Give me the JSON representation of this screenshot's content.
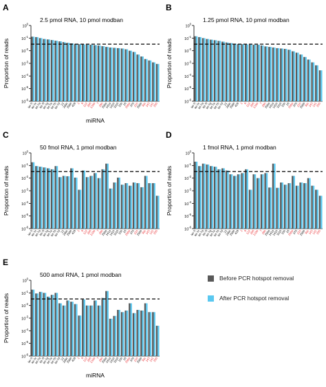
{
  "figure": {
    "colors": {
      "before": "#595959",
      "after": "#5ac8f0",
      "threshold": "#000000",
      "red_label": "#e8262a"
    },
    "legend": {
      "items": [
        {
          "label": "Before PCR hotspot removal",
          "color": "#595959"
        },
        {
          "label": "After PCR hotspot removal",
          "color": "#5ac8f0"
        }
      ]
    }
  },
  "chart_data": [
    {
      "panel": "A",
      "type": "bar",
      "title": "2.5 pmol RNA, 10 pmol modban",
      "xlabel": "miRNA",
      "ylabel": "Proportion of reads",
      "yscale": "log",
      "ylim": [
        1e-06,
        1
      ],
      "threshold": 0.033,
      "y_ticks": [
        0,
        -1,
        -2,
        -3,
        -4,
        -5,
        -6
      ],
      "categories": [
        "let-7i",
        "let-7c",
        "let-7a",
        "let-7f",
        "let-7g",
        "let-7e",
        "let-7b",
        "let-7d",
        "21",
        "200c",
        "200b",
        "429",
        "1",
        "9",
        "122",
        "206",
        "133a",
        "7",
        "29b",
        "205a",
        "141a",
        "141b",
        "3110",
        "15b",
        "16",
        "200a",
        "375",
        "21b",
        "205b",
        "30c",
        "143",
        "141",
        "205"
      ],
      "red": [
        12,
        13,
        14,
        15,
        16,
        17,
        18,
        25,
        27,
        29,
        30,
        31,
        32
      ],
      "series": [
        {
          "name": "Before PCR hotspot removal",
          "values": [
            0.13,
            0.12,
            0.1,
            0.085,
            0.078,
            0.07,
            0.062,
            0.055,
            0.048,
            0.042,
            0.038,
            0.035,
            0.033,
            0.032,
            0.031,
            0.03,
            0.028,
            0.026,
            0.023,
            0.02,
            0.018,
            0.017,
            0.016,
            0.015,
            0.013,
            0.01,
            0.008,
            0.005,
            0.0035,
            0.0022,
            0.0017,
            0.0012,
            0.0009
          ]
        },
        {
          "name": "After PCR hotspot removal",
          "values": [
            0.13,
            0.12,
            0.1,
            0.085,
            0.078,
            0.07,
            0.062,
            0.055,
            0.048,
            0.042,
            0.038,
            0.035,
            0.033,
            0.032,
            0.031,
            0.03,
            0.028,
            0.026,
            0.023,
            0.02,
            0.018,
            0.017,
            0.016,
            0.015,
            0.013,
            0.01,
            0.008,
            0.005,
            0.0035,
            0.0022,
            0.0017,
            0.0012,
            0.0009
          ]
        }
      ]
    },
    {
      "panel": "B",
      "type": "bar",
      "title": "1.25 pmol RNA, 10 pmol modban",
      "xlabel": "",
      "ylabel": "Proportion of reads",
      "yscale": "log",
      "ylim": [
        1e-06,
        1
      ],
      "threshold": 0.033,
      "y_ticks": [
        0,
        -1,
        -2,
        -3,
        -4,
        -5,
        -6
      ],
      "categories": [
        "let-7i",
        "let-7c",
        "let-7a",
        "let-7f",
        "let-7g",
        "let-7e",
        "let-7b",
        "let-7d",
        "21",
        "200c",
        "200b",
        "429",
        "1",
        "9",
        "122",
        "206",
        "133a",
        "7",
        "29b",
        "205a",
        "141a",
        "141b",
        "3110",
        "15b",
        "16",
        "200a",
        "375",
        "21b",
        "205b",
        "30c",
        "143",
        "141",
        "205"
      ],
      "red": [
        12,
        13,
        14,
        15,
        16,
        17,
        18,
        25,
        27,
        29,
        30,
        31,
        32
      ],
      "series": [
        {
          "name": "Before PCR hotspot removal",
          "values": [
            0.14,
            0.12,
            0.1,
            0.085,
            0.075,
            0.068,
            0.06,
            0.052,
            0.045,
            0.04,
            0.036,
            0.034,
            0.033,
            0.032,
            0.031,
            0.03,
            0.03,
            0.026,
            0.022,
            0.02,
            0.018,
            0.016,
            0.015,
            0.014,
            0.012,
            0.009,
            0.007,
            0.005,
            0.0032,
            0.002,
            0.0012,
            0.0007,
            0.00028
          ]
        },
        {
          "name": "After PCR hotspot removal",
          "values": [
            0.14,
            0.12,
            0.1,
            0.085,
            0.075,
            0.068,
            0.06,
            0.052,
            0.045,
            0.04,
            0.036,
            0.034,
            0.033,
            0.032,
            0.031,
            0.03,
            0.03,
            0.026,
            0.022,
            0.02,
            0.018,
            0.016,
            0.015,
            0.014,
            0.012,
            0.009,
            0.007,
            0.005,
            0.0032,
            0.002,
            0.0012,
            0.0007,
            0.00028
          ]
        }
      ]
    },
    {
      "panel": "C",
      "type": "bar",
      "title": "50 fmol RNA, 1 pmol modban",
      "xlabel": "",
      "ylabel": "Proportion of reads",
      "yscale": "log",
      "ylim": [
        1e-06,
        1
      ],
      "threshold": 0.033,
      "y_ticks": [
        0,
        -1,
        -2,
        -3,
        -4,
        -5,
        -6
      ],
      "categories": [
        "let-7i",
        "let-7c",
        "let-7a",
        "let-7f",
        "let-7g",
        "let-7e",
        "let-7b",
        "let-7d",
        "21",
        "200c",
        "200b",
        "429",
        "1",
        "9",
        "122",
        "206",
        "133a",
        "7",
        "29b",
        "205a",
        "141a",
        "141b",
        "3110",
        "15b",
        "16",
        "200a",
        "375",
        "21b",
        "205b",
        "30c",
        "143",
        "141",
        "205"
      ],
      "red": [
        12,
        13,
        14,
        15,
        16,
        17,
        18,
        25,
        27,
        29,
        30,
        31,
        32
      ],
      "series": [
        {
          "name": "Before PCR hotspot removal",
          "values": [
            0.18,
            0.09,
            0.08,
            0.07,
            0.06,
            0.05,
            0.09,
            0.012,
            0.015,
            0.014,
            0.06,
            0.011,
            0.0012,
            0.04,
            0.012,
            0.015,
            0.025,
            0.01,
            0.05,
            0.14,
            0.0015,
            0.0045,
            0.011,
            0.003,
            0.004,
            0.0025,
            0.0045,
            0.004,
            0.0019,
            0.015,
            0.004,
            0.004,
            0.0004
          ]
        },
        {
          "name": "After PCR hotspot removal",
          "values": [
            0.18,
            0.09,
            0.08,
            0.07,
            0.06,
            0.05,
            0.09,
            0.012,
            0.015,
            0.014,
            0.06,
            0.011,
            0.0012,
            0.04,
            0.012,
            0.015,
            0.025,
            0.01,
            0.05,
            0.14,
            0.0015,
            0.0045,
            0.011,
            0.003,
            0.004,
            0.0025,
            0.0045,
            0.004,
            0.0019,
            0.015,
            0.004,
            0.004,
            0.0004
          ]
        }
      ]
    },
    {
      "panel": "D",
      "type": "bar",
      "title": "1 fmol RNA, 1 pmol modban",
      "xlabel": "",
      "ylabel": "Proportion of reads",
      "yscale": "log",
      "ylim": [
        1e-06,
        1
      ],
      "threshold": 0.033,
      "y_ticks": [
        0,
        -1,
        -2,
        -3,
        -4,
        -5,
        -6
      ],
      "categories": [
        "let-7i",
        "let-7c",
        "let-7a",
        "let-7f",
        "let-7g",
        "let-7e",
        "let-7b",
        "let-7d",
        "21",
        "200c",
        "200b",
        "429",
        "1",
        "9",
        "122",
        "206",
        "133a",
        "7",
        "29b",
        "205a",
        "141a",
        "141b",
        "3110",
        "15b",
        "16",
        "200a",
        "375",
        "21b",
        "205b",
        "30c",
        "143",
        "141",
        "205"
      ],
      "red": [
        12,
        13,
        14,
        15,
        16,
        17,
        18,
        25,
        27,
        29,
        30,
        31,
        32
      ],
      "series": [
        {
          "name": "Before PCR hotspot removal",
          "values": [
            0.2,
            0.09,
            0.14,
            0.12,
            0.09,
            0.08,
            0.05,
            0.06,
            0.04,
            0.02,
            0.015,
            0.02,
            0.025,
            0.05,
            0.0012,
            0.02,
            0.01,
            0.02,
            0.025,
            0.0018,
            0.14,
            0.0017,
            0.0045,
            0.003,
            0.004,
            0.015,
            0.0025,
            0.0045,
            0.004,
            0.01,
            0.0025,
            0.0012,
            0.0004
          ]
        },
        {
          "name": "After PCR hotspot removal",
          "values": [
            0.2,
            0.09,
            0.14,
            0.12,
            0.09,
            0.08,
            0.05,
            0.06,
            0.04,
            0.02,
            0.015,
            0.02,
            0.025,
            0.05,
            0.0012,
            0.02,
            0.01,
            0.02,
            0.025,
            0.0018,
            0.14,
            0.0017,
            0.0045,
            0.003,
            0.004,
            0.015,
            0.0025,
            0.0045,
            0.004,
            0.01,
            0.0025,
            0.0012,
            0.0004
          ]
        }
      ]
    },
    {
      "panel": "E",
      "type": "bar",
      "title": "500 amol RNA, 1 pmol modban",
      "xlabel": "miRNA",
      "ylabel": "Proportion of reads",
      "yscale": "log",
      "ylim": [
        1e-06,
        1
      ],
      "threshold": 0.033,
      "y_ticks": [
        0,
        -1,
        -2,
        -3,
        -4,
        -5,
        -6
      ],
      "categories": [
        "let-7i",
        "let-7c",
        "let-7a",
        "let-7f",
        "let-7g",
        "let-7e",
        "let-7b",
        "let-7d",
        "21",
        "200c",
        "200b",
        "429",
        "1",
        "9",
        "122",
        "206",
        "133a",
        "7",
        "29b",
        "205a",
        "141a",
        "141b",
        "3110",
        "15b",
        "16",
        "200a",
        "375",
        "21b",
        "205b",
        "30c",
        "143",
        "141",
        "205"
      ],
      "red": [
        12,
        13,
        14,
        15,
        16,
        17,
        18,
        25,
        27,
        29,
        30,
        31,
        32
      ],
      "series": [
        {
          "name": "Before PCR hotspot removal",
          "values": [
            0.18,
            0.09,
            0.12,
            0.1,
            0.05,
            0.07,
            0.1,
            0.015,
            0.01,
            0.025,
            0.02,
            0.013,
            0.0016,
            0.03,
            0.01,
            0.01,
            0.025,
            0.01,
            0.04,
            0.14,
            0.0009,
            0.0015,
            0.0045,
            0.003,
            0.004,
            0.015,
            0.0025,
            0.0045,
            0.004,
            0.015,
            0.003,
            0.003,
            0.00025
          ]
        },
        {
          "name": "After PCR hotspot removal",
          "values": [
            0.18,
            0.09,
            0.12,
            0.1,
            0.05,
            0.07,
            0.1,
            0.015,
            0.01,
            0.025,
            0.02,
            0.013,
            0.0016,
            0.03,
            0.01,
            0.01,
            0.025,
            0.01,
            0.04,
            0.14,
            0.0009,
            0.0015,
            0.0045,
            0.003,
            0.004,
            0.015,
            0.0025,
            0.0045,
            0.004,
            0.015,
            0.003,
            0.003,
            0.00025
          ]
        }
      ]
    }
  ]
}
